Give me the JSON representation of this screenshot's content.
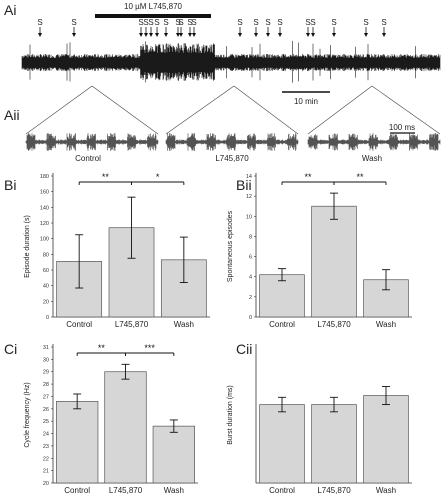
{
  "panels": {
    "ai": "Ai",
    "aii": "Aii",
    "bi": "Bi",
    "bii": "Bii",
    "ci": "Ci",
    "cii": "Cii"
  },
  "traces": {
    "drug_label": "10 µM L745,870",
    "episode_marker": "S",
    "scale_10min": "10 min",
    "scale_100ms": "100 ms",
    "aii_labels": [
      "Control",
      "L745,870",
      "Wash"
    ]
  },
  "chart_data": [
    {
      "id": "bi",
      "type": "bar",
      "categories": [
        "Control",
        "L745,870",
        "Wash"
      ],
      "values": [
        71,
        114,
        73
      ],
      "errors": [
        34,
        39,
        29
      ],
      "ylabel": "Episode duration (s)",
      "ylim": [
        0,
        180
      ],
      "yticks": [
        "0",
        "20",
        "40",
        "60",
        "80",
        "100",
        "120",
        "140",
        "160",
        "180"
      ],
      "significance": [
        {
          "from": 0,
          "to": 1,
          "label": "**"
        },
        {
          "from": 1,
          "to": 2,
          "label": "*"
        }
      ]
    },
    {
      "id": "bii",
      "type": "bar",
      "categories": [
        "Control",
        "L745,870",
        "Wash"
      ],
      "values": [
        4.2,
        11.0,
        3.7
      ],
      "errors": [
        0.6,
        1.3,
        1.0
      ],
      "ylabel": "Spontaneous episodes",
      "ylim": [
        0,
        14
      ],
      "yticks": [
        "0",
        "2",
        "4",
        "6",
        "8",
        "10",
        "12",
        "14"
      ],
      "significance": [
        {
          "from": 0,
          "to": 1,
          "label": "**"
        },
        {
          "from": 1,
          "to": 2,
          "label": "**"
        }
      ]
    },
    {
      "id": "ci",
      "type": "bar",
      "categories": [
        "Control",
        "L745,870",
        "Wash"
      ],
      "values": [
        26.6,
        29.0,
        24.6
      ],
      "errors": [
        0.6,
        0.6,
        0.5
      ],
      "ylabel": "Cycle frequency (Hz)",
      "ylim": [
        20,
        31
      ],
      "yticks": [
        "20",
        "21",
        "22",
        "23",
        "24",
        "25",
        "26",
        "27",
        "28",
        "29",
        "30",
        "31"
      ],
      "significance": [
        {
          "from": 0,
          "to": 1,
          "label": "**"
        },
        {
          "from": 1,
          "to": 2,
          "label": "***"
        }
      ]
    },
    {
      "id": "cii",
      "type": "bar",
      "categories": [
        "Control",
        "L745,870",
        "Wash"
      ],
      "values": [
        17.3,
        17.3,
        19.3
      ],
      "errors": [
        1.6,
        1.6,
        2.0
      ],
      "ylabel": "Burst duration (ms)",
      "ylim": [
        0,
        30
      ],
      "yticks": [],
      "significance": []
    }
  ],
  "colors": {
    "bar_fill": "#d6d6d6",
    "bar_stroke": "#555555",
    "trace": "#1a1a1a",
    "axis": "#333333"
  }
}
